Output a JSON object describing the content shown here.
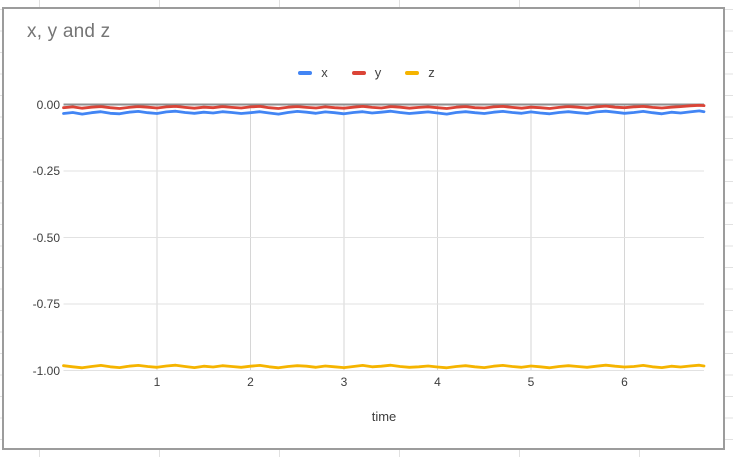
{
  "chart": {
    "title": "x, y and z",
    "x_axis_title": "time",
    "legend": [
      {
        "label": "x",
        "color": "#4285f4"
      },
      {
        "label": "y",
        "color": "#db4437"
      },
      {
        "label": "z",
        "color": "#f5b400"
      }
    ]
  },
  "colors": {
    "chart_border": "#9c9c9c",
    "grid_horizontal": "#e2e2e2",
    "grid_vertical": "#d6d6d6",
    "zero_baseline": "#8f8f8f",
    "title_text": "#757575",
    "tick_text": "#3d3d3d",
    "sheet_grid": "#e1e1e1"
  },
  "chart_data": {
    "type": "line",
    "title": "x, y and z",
    "xlabel": "time",
    "ylabel": "",
    "grid": true,
    "legend_position": "top-center",
    "xlim": [
      0,
      6.85
    ],
    "ylim": [
      -1.0,
      0.0
    ],
    "x_ticks": [
      1,
      2,
      3,
      4,
      5,
      6
    ],
    "y_ticks": [
      {
        "v": 0.0,
        "label": "0.00"
      },
      {
        "v": -0.25,
        "label": "-0.25"
      },
      {
        "v": -0.5,
        "label": "-0.50"
      },
      {
        "v": -0.75,
        "label": "-0.75"
      },
      {
        "v": -1.0,
        "label": "-1.00"
      }
    ],
    "x": [
      0,
      0.1,
      0.2,
      0.3,
      0.4,
      0.5,
      0.6,
      0.7,
      0.8,
      0.9,
      1.0,
      1.1,
      1.2,
      1.3,
      1.4,
      1.5,
      1.6,
      1.7,
      1.8,
      1.9,
      2.0,
      2.1,
      2.2,
      2.3,
      2.4,
      2.5,
      2.6,
      2.7,
      2.8,
      2.9,
      3.0,
      3.1,
      3.2,
      3.3,
      3.4,
      3.5,
      3.6,
      3.7,
      3.8,
      3.9,
      4.0,
      4.1,
      4.2,
      4.3,
      4.4,
      4.5,
      4.6,
      4.7,
      4.8,
      4.9,
      5.0,
      5.1,
      5.2,
      5.3,
      5.4,
      5.5,
      5.6,
      5.7,
      5.8,
      5.9,
      6.0,
      6.1,
      6.2,
      6.3,
      6.4,
      6.5,
      6.6,
      6.7,
      6.8,
      6.85
    ],
    "series": [
      {
        "name": "x",
        "color": "#4285f4",
        "values": [
          -0.034,
          -0.03,
          -0.036,
          -0.031,
          -0.027,
          -0.033,
          -0.035,
          -0.029,
          -0.026,
          -0.031,
          -0.034,
          -0.028,
          -0.025,
          -0.03,
          -0.033,
          -0.029,
          -0.032,
          -0.027,
          -0.03,
          -0.034,
          -0.031,
          -0.027,
          -0.032,
          -0.036,
          -0.03,
          -0.026,
          -0.029,
          -0.033,
          -0.028,
          -0.031,
          -0.035,
          -0.03,
          -0.027,
          -0.032,
          -0.029,
          -0.025,
          -0.03,
          -0.034,
          -0.031,
          -0.028,
          -0.032,
          -0.036,
          -0.03,
          -0.027,
          -0.031,
          -0.034,
          -0.029,
          -0.026,
          -0.03,
          -0.033,
          -0.028,
          -0.032,
          -0.035,
          -0.03,
          -0.027,
          -0.031,
          -0.034,
          -0.028,
          -0.025,
          -0.029,
          -0.033,
          -0.03,
          -0.026,
          -0.031,
          -0.035,
          -0.029,
          -0.032,
          -0.028,
          -0.024,
          -0.027
        ]
      },
      {
        "name": "y",
        "color": "#db4437",
        "values": [
          -0.012,
          -0.009,
          -0.014,
          -0.01,
          -0.008,
          -0.012,
          -0.015,
          -0.011,
          -0.008,
          -0.01,
          -0.013,
          -0.009,
          -0.007,
          -0.011,
          -0.014,
          -0.01,
          -0.012,
          -0.008,
          -0.011,
          -0.013,
          -0.009,
          -0.007,
          -0.012,
          -0.015,
          -0.01,
          -0.008,
          -0.011,
          -0.013,
          -0.009,
          -0.012,
          -0.014,
          -0.01,
          -0.007,
          -0.011,
          -0.013,
          -0.008,
          -0.01,
          -0.014,
          -0.011,
          -0.009,
          -0.012,
          -0.015,
          -0.01,
          -0.008,
          -0.012,
          -0.013,
          -0.009,
          -0.007,
          -0.011,
          -0.014,
          -0.01,
          -0.012,
          -0.015,
          -0.011,
          -0.008,
          -0.01,
          -0.013,
          -0.009,
          -0.006,
          -0.01,
          -0.012,
          -0.009,
          -0.007,
          -0.011,
          -0.013,
          -0.01,
          -0.008,
          -0.005,
          -0.003,
          -0.004
        ]
      },
      {
        "name": "z",
        "color": "#f5b400",
        "values": [
          -0.982,
          -0.986,
          -0.99,
          -0.985,
          -0.981,
          -0.986,
          -0.989,
          -0.984,
          -0.981,
          -0.985,
          -0.988,
          -0.983,
          -0.98,
          -0.985,
          -0.989,
          -0.984,
          -0.987,
          -0.982,
          -0.985,
          -0.988,
          -0.984,
          -0.981,
          -0.986,
          -0.99,
          -0.985,
          -0.982,
          -0.984,
          -0.988,
          -0.983,
          -0.986,
          -0.989,
          -0.985,
          -0.981,
          -0.986,
          -0.984,
          -0.98,
          -0.985,
          -0.988,
          -0.986,
          -0.983,
          -0.987,
          -0.99,
          -0.985,
          -0.982,
          -0.986,
          -0.989,
          -0.984,
          -0.981,
          -0.985,
          -0.988,
          -0.983,
          -0.986,
          -0.99,
          -0.985,
          -0.982,
          -0.985,
          -0.988,
          -0.984,
          -0.98,
          -0.984,
          -0.987,
          -0.985,
          -0.981,
          -0.986,
          -0.989,
          -0.984,
          -0.987,
          -0.983,
          -0.98,
          -0.983
        ]
      }
    ]
  }
}
